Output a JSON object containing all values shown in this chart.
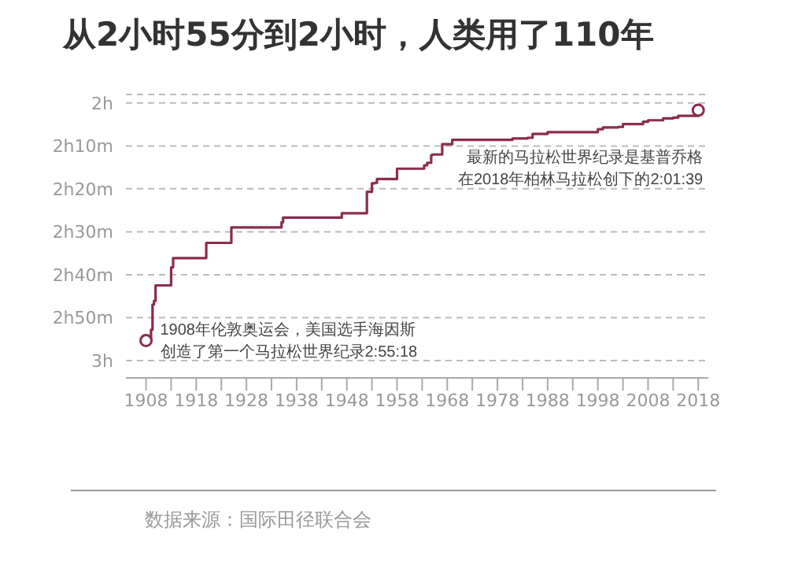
{
  "chart_data": {
    "type": "step",
    "title": "从2小时55分到2小时，人类用了110年",
    "x": [
      1908,
      1909,
      1909.3,
      1909.6,
      1909.9,
      1913,
      1913.4,
      1920,
      1925,
      1935,
      1935.3,
      1935.9,
      1947,
      1952,
      1953,
      1953.5,
      1954,
      1958,
      1960,
      1963,
      1963.4,
      1964,
      1964.8,
      1965,
      1967,
      1969,
      1981,
      1984,
      1985,
      1988,
      1998,
      1999,
      2002,
      2003,
      2007,
      2008,
      2011,
      2013,
      2014,
      2018
    ],
    "series": [
      {
        "color": "#8b2d4a",
        "values": [
          2.922,
          2.88,
          2.782,
          2.768,
          2.708,
          2.638,
          2.602,
          2.543,
          2.483,
          2.463,
          2.445,
          2.445,
          2.428,
          2.345,
          2.312,
          2.31,
          2.295,
          2.255,
          2.255,
          2.255,
          2.242,
          2.232,
          2.203,
          2.2,
          2.16,
          2.143,
          2.138,
          2.135,
          2.12,
          2.113,
          2.102,
          2.095,
          2.093,
          2.082,
          2.073,
          2.067,
          2.06,
          2.057,
          2.05,
          2.028
        ]
      }
    ],
    "xlim": [
      1904,
      2020
    ],
    "xticks": [
      1908,
      {
        "value": 1913,
        "label": null
      },
      1918,
      {
        "value": 1923,
        "label": null
      },
      1928,
      {
        "value": 1933,
        "label": null
      },
      1938,
      {
        "value": 1943,
        "label": null
      },
      1948,
      {
        "value": 1953,
        "label": null
      },
      1958,
      {
        "value": 1963,
        "label": null
      },
      1968,
      {
        "value": 1973,
        "label": null
      },
      1978,
      {
        "value": 1983,
        "label": null
      },
      1988,
      {
        "value": 1993,
        "label": null
      },
      1998,
      {
        "value": 2003,
        "label": null
      },
      2008,
      {
        "value": 2013,
        "label": null
      },
      2018
    ],
    "ylim": [
      3.067,
      1.967
    ],
    "yticks": [
      {
        "value": 2,
        "label": "2h"
      },
      {
        "value": 2.167,
        "label": "2h10m"
      },
      {
        "value": 2.333,
        "label": "2h20m"
      },
      {
        "value": 2.5,
        "label": "2h30m"
      },
      {
        "value": 2.667,
        "label": "2h40m"
      },
      {
        "value": 2.833,
        "label": "2h50m"
      },
      {
        "value": 3,
        "label": "3h"
      }
    ],
    "grid": "y",
    "annotations": [
      {
        "text": "1908年伦敦奥运会，美国选手海因斯创造了第一个马拉松世界纪录2:55:18",
        "x": 1908,
        "y": 2.922
      },
      {
        "text": "最新的马拉松世界纪录是基普乔格在2018年柏林马拉松创下的2:01:39",
        "x": 2018,
        "y": 2.028
      },
      "数据来源：国际田径联合会"
    ]
  }
}
